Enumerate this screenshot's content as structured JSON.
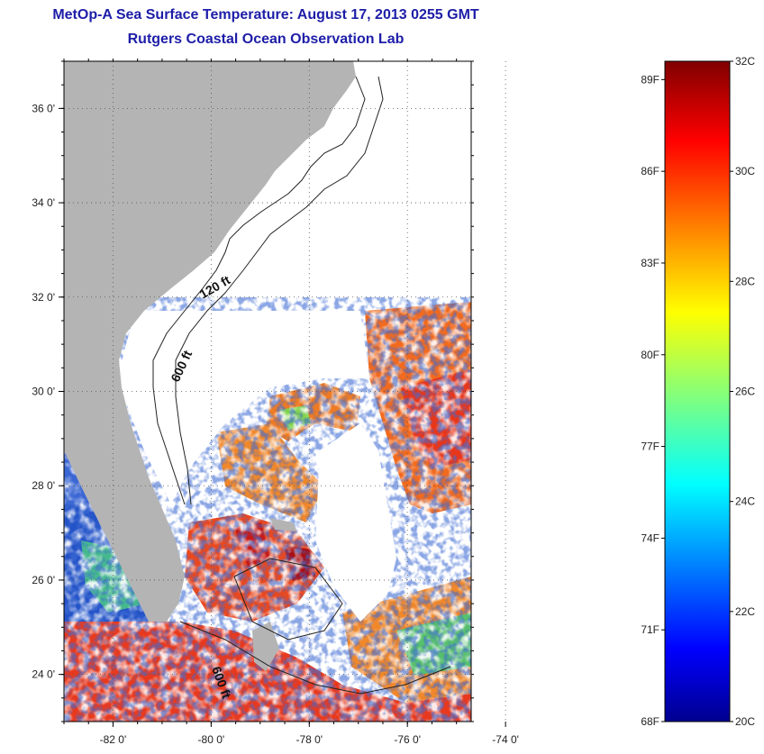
{
  "header": {
    "title_line1": "MetOp-A Sea Surface Temperature:  August 17, 2013 0255 GMT",
    "title_line2": "Rutgers Coastal Ocean Observation Lab"
  },
  "map": {
    "lon_labels": [
      "-82 0'",
      "-80 0'",
      "-78 0'",
      "-76 0'",
      "-74 0'"
    ],
    "lon_values": [
      -82,
      -80,
      -78,
      -76,
      -74
    ],
    "lat_labels": [
      "36 0'",
      "34 0'",
      "32 0'",
      "30 0'",
      "28 0'",
      "26 0'",
      "24 0'"
    ],
    "lat_values": [
      36,
      34,
      32,
      30,
      28,
      26,
      24
    ],
    "lon_range": [
      -83,
      -74.7
    ],
    "lat_range": [
      23,
      37
    ],
    "bathy_labels": [
      "120 ft",
      "600 ft",
      "600 ft"
    ],
    "land_color": "#b4b4b4",
    "nodata_color": "#ffffff"
  },
  "colorbar": {
    "celsius_labels": [
      "32C",
      "30C",
      "28C",
      "26C",
      "24C",
      "22C",
      "20C"
    ],
    "celsius_values": [
      32,
      30,
      28,
      26,
      24,
      22,
      20
    ],
    "fahrenheit_labels": [
      "89F",
      "86F",
      "83F",
      "80F",
      "77F",
      "74F",
      "71F",
      "68F"
    ],
    "fahrenheit_values": [
      89,
      86,
      83,
      80,
      77,
      74,
      71,
      68
    ],
    "range_c": [
      20,
      32
    ],
    "colormap": "jet"
  }
}
